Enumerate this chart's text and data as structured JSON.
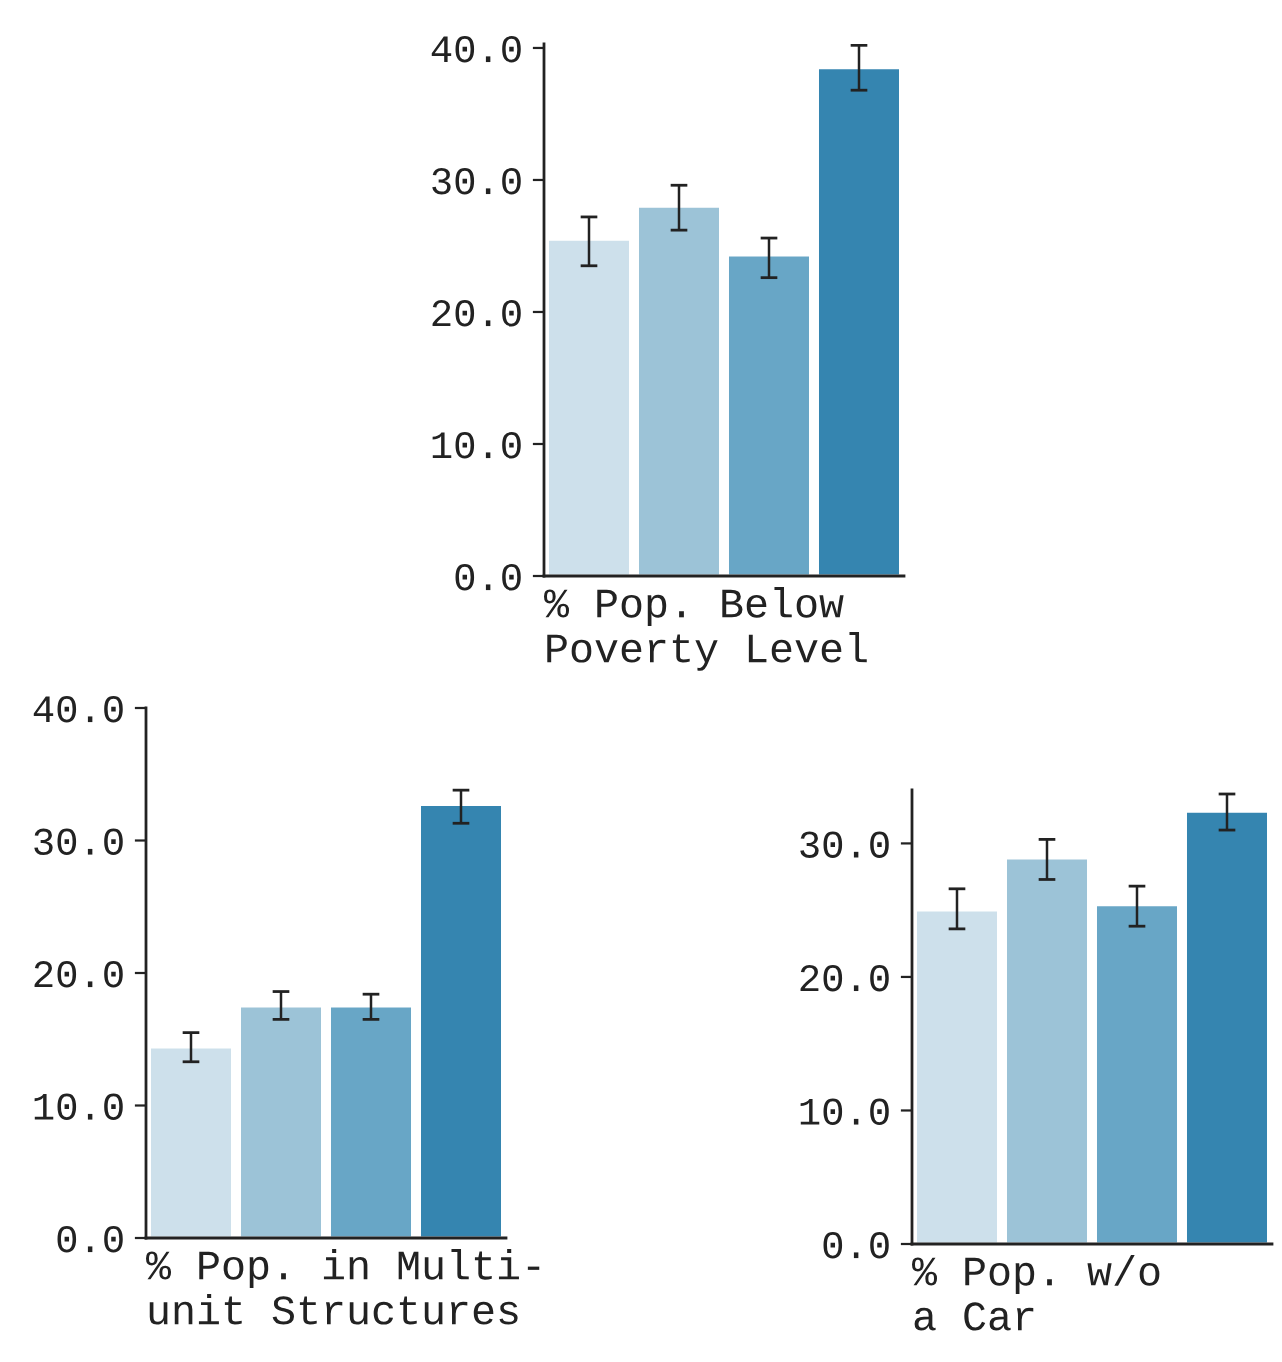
{
  "chart_data": [
    {
      "type": "bar",
      "xlabel": "% Pop. Below\nPoverty Level",
      "categories": [
        null,
        null,
        null,
        null
      ],
      "values": [
        25.5,
        28.0,
        24.3,
        38.5
      ],
      "colors": [
        "#cde0eb",
        "#9cc3d7",
        "#68a6c6",
        "#3585b0"
      ],
      "errors": [
        [
          23.5,
          27.2
        ],
        [
          26.2,
          29.6
        ],
        [
          22.6,
          25.6
        ],
        [
          36.8,
          40.2
        ]
      ],
      "ylim": [
        0,
        40.3
      ],
      "yticks": [
        {
          "value": 0,
          "label": "0.0"
        },
        {
          "value": 10,
          "label": "10.0"
        },
        {
          "value": 20,
          "label": "20.0"
        },
        {
          "value": 30,
          "label": "30.0"
        },
        {
          "value": 40,
          "label": "40.0"
        }
      ],
      "tick_labels": "y",
      "grid": false,
      "legend": false
    },
    {
      "type": "bar",
      "xlabel": "% Pop. in Multi-\nunit Structures",
      "categories": [
        null,
        null,
        null,
        null
      ],
      "values": [
        14.4,
        17.5,
        17.5,
        32.7
      ],
      "colors": [
        "#cde0eb",
        "#9cc3d7",
        "#68a6c6",
        "#3585b0"
      ],
      "errors": [
        [
          13.3,
          15.5
        ],
        [
          16.5,
          18.6
        ],
        [
          16.5,
          18.4
        ],
        [
          31.3,
          33.8
        ]
      ],
      "ylim": [
        0,
        40
      ],
      "yticks": [
        {
          "value": 0,
          "label": "0.0"
        },
        {
          "value": 10,
          "label": "10.0"
        },
        {
          "value": 20,
          "label": "20.0"
        },
        {
          "value": 30,
          "label": "30.0"
        },
        {
          "value": 40,
          "label": "40.0"
        }
      ],
      "tick_labels": "y",
      "grid": false,
      "legend": false
    },
    {
      "type": "bar",
      "xlabel": "% Pop. w/o\na Car",
      "categories": [
        null,
        null,
        null,
        null
      ],
      "values": [
        25.0,
        28.9,
        25.4,
        32.4
      ],
      "colors": [
        "#cde0eb",
        "#9cc3d7",
        "#68a6c6",
        "#3585b0"
      ],
      "errors": [
        [
          23.6,
          26.6
        ],
        [
          27.3,
          30.3
        ],
        [
          23.8,
          26.8
        ],
        [
          31.0,
          33.7
        ]
      ],
      "ylim": [
        0,
        34
      ],
      "yticks": [
        {
          "value": 0,
          "label": "0.0"
        },
        {
          "value": 10,
          "label": "10.0"
        },
        {
          "value": 20,
          "label": "20.0"
        },
        {
          "value": 30,
          "label": "30.0"
        }
      ],
      "tick_labels": "y",
      "grid": false,
      "legend": false
    }
  ]
}
